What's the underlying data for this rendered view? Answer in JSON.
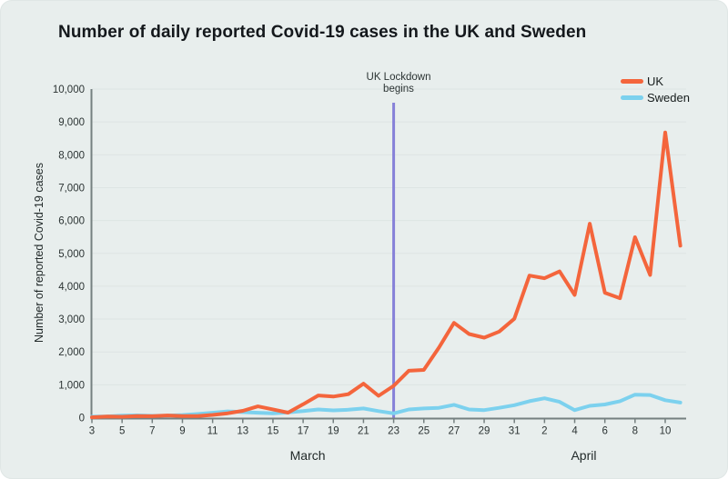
{
  "card": {
    "title": "Number of daily reported Covid-19 cases in the UK and Sweden",
    "background_color": "#e8eeed"
  },
  "legend": {
    "position": "top-right",
    "items": [
      {
        "label": "UK",
        "color": "#f4653c"
      },
      {
        "label": "Sweden",
        "color": "#7cd1ee"
      }
    ]
  },
  "annotation": {
    "line1": "UK Lockdown",
    "line2": "begins",
    "date_label": "23 March",
    "day_index": 20,
    "color": "#8781d8"
  },
  "chart_data": {
    "type": "line",
    "title": "Number of daily reported Covid-19 cases in the UK and Sweden",
    "xlabel": "",
    "ylabel": "Number of reported Covid-19 cases",
    "ylim": [
      0,
      10000
    ],
    "grid": "horizontal",
    "legend_position": "top-right",
    "y_ticks": [
      {
        "value": 0,
        "label": "0"
      },
      {
        "value": 1000,
        "label": "1,000"
      },
      {
        "value": 2000,
        "label": "2,000"
      },
      {
        "value": 3000,
        "label": "3,000"
      },
      {
        "value": 4000,
        "label": "4,000"
      },
      {
        "value": 5000,
        "label": "5,000"
      },
      {
        "value": 6000,
        "label": "6,000"
      },
      {
        "value": 7000,
        "label": "7,000"
      },
      {
        "value": 8000,
        "label": "8,000"
      },
      {
        "value": 9000,
        "label": "9,000"
      },
      {
        "value": 10000,
        "label": "10,000"
      }
    ],
    "x_ticks": [
      {
        "day_index": 0,
        "label": "3"
      },
      {
        "day_index": 2,
        "label": "5"
      },
      {
        "day_index": 4,
        "label": "7"
      },
      {
        "day_index": 6,
        "label": "9"
      },
      {
        "day_index": 8,
        "label": "11"
      },
      {
        "day_index": 10,
        "label": "13"
      },
      {
        "day_index": 12,
        "label": "15"
      },
      {
        "day_index": 14,
        "label": "17"
      },
      {
        "day_index": 16,
        "label": "19"
      },
      {
        "day_index": 18,
        "label": "21"
      },
      {
        "day_index": 20,
        "label": "23"
      },
      {
        "day_index": 22,
        "label": "25"
      },
      {
        "day_index": 24,
        "label": "27"
      },
      {
        "day_index": 26,
        "label": "29"
      },
      {
        "day_index": 28,
        "label": "31"
      },
      {
        "day_index": 30,
        "label": "2"
      },
      {
        "day_index": 32,
        "label": "4"
      },
      {
        "day_index": 34,
        "label": "6"
      },
      {
        "day_index": 36,
        "label": "8"
      },
      {
        "day_index": 38,
        "label": "10"
      }
    ],
    "month_labels": [
      {
        "label": "March",
        "center_day_index": 14.3
      },
      {
        "label": "April",
        "center_day_index": 32.6
      }
    ],
    "x_start_date": "3 March",
    "x_end_date": "11 April",
    "series": [
      {
        "name": "Sweden",
        "color": "#7cd1ee",
        "values": [
          30,
          40,
          60,
          70,
          55,
          60,
          80,
          110,
          150,
          190,
          170,
          150,
          130,
          160,
          200,
          250,
          220,
          240,
          280,
          200,
          130,
          250,
          280,
          300,
          390,
          250,
          230,
          300,
          380,
          500,
          590,
          480,
          230,
          360,
          400,
          500,
          700,
          690,
          530,
          460
        ]
      },
      {
        "name": "UK",
        "color": "#f4653c",
        "values": [
          12,
          34,
          29,
          46,
          45,
          67,
          46,
          50,
          83,
          134,
          208,
          342,
          251,
          152,
          407,
          676,
          643,
          714,
          1035,
          665,
          967,
          1427,
          1452,
          2129,
          2885,
          2546,
          2433,
          2619,
          3009,
          4324,
          4244,
          4450,
          3735,
          5903,
          3802,
          3634,
          5491,
          4344,
          8681,
          5233
        ]
      }
    ],
    "style": {
      "gridline_color": "#dde4e3",
      "axis_color": "#758080",
      "tick_text_color": "#2b3333",
      "line_width": 4
    }
  }
}
